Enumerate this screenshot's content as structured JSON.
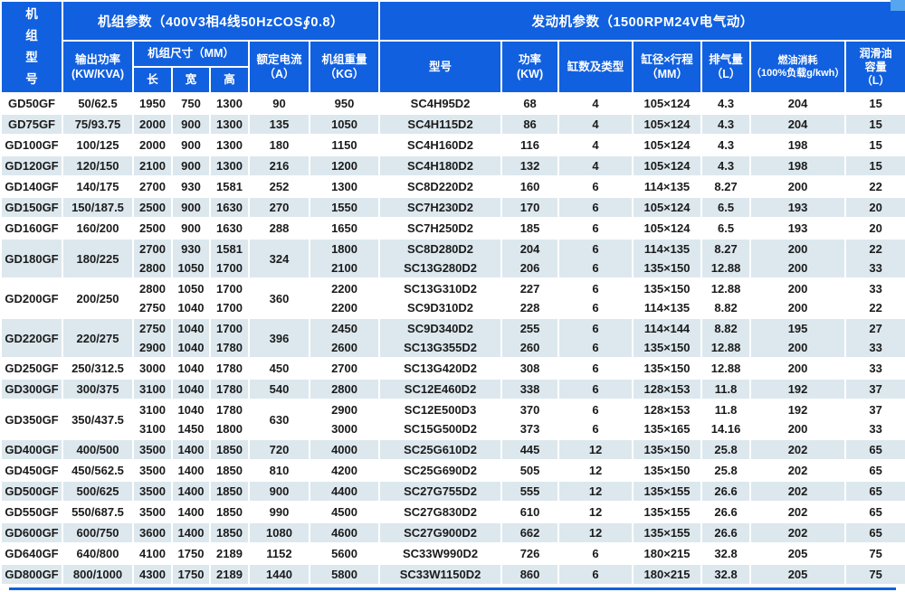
{
  "table": {
    "unit_model_header": "机\n组\n型\n号",
    "unit_banner": "机组参数（400V3相4线50HzCOS∮0.8）",
    "engine_banner": "发动机参数（1500RPM24V电气动）",
    "columns": {
      "output_power": "输出功率\n(KW/KVA)",
      "unit_size": "机组尺寸（MM）",
      "length": "长",
      "width": "宽",
      "height": "高",
      "rated_current": "额定电流\n（A）",
      "unit_weight": "机组重量\n（KG）",
      "engine_model": "型号",
      "engine_power": "功率\n(KW)",
      "cylinders": "缸数及类型",
      "bore_stroke": "缸径×行程\n（MM）",
      "displacement": "排气量\n（L）",
      "fuel_consumption": "燃油消耗\n（100%负载g/kwh）",
      "oil_capacity": "润滑油\n容量\n（L）"
    },
    "engine_fields": [
      "model",
      "kw",
      "cylinders",
      "bore_stroke",
      "displacement",
      "fuel",
      "oil"
    ],
    "colors": {
      "header_blue": "#1160df",
      "stripe": "#dce8ee",
      "corner_light": "#56a5ef",
      "border_white": "#ffffff",
      "text": "#1b1b1b"
    },
    "rows": [
      {
        "model": "GD50GF",
        "power": "50/62.5",
        "dims": [
          [
            "1950",
            "750",
            "1300"
          ]
        ],
        "current": "90",
        "weights": [
          "950"
        ],
        "engines": [
          [
            "SC4H95D2",
            "68",
            "4",
            "105×124",
            "4.3",
            "204",
            "15"
          ]
        ]
      },
      {
        "model": "GD75GF",
        "power": "75/93.75",
        "dims": [
          [
            "2000",
            "900",
            "1300"
          ]
        ],
        "current": "135",
        "weights": [
          "1050"
        ],
        "engines": [
          [
            "SC4H115D2",
            "86",
            "4",
            "105×124",
            "4.3",
            "204",
            "15"
          ]
        ]
      },
      {
        "model": "GD100GF",
        "power": "100/125",
        "dims": [
          [
            "2000",
            "900",
            "1300"
          ]
        ],
        "current": "180",
        "weights": [
          "1150"
        ],
        "engines": [
          [
            "SC4H160D2",
            "116",
            "4",
            "105×124",
            "4.3",
            "198",
            "15"
          ]
        ]
      },
      {
        "model": "GD120GF",
        "power": "120/150",
        "dims": [
          [
            "2100",
            "900",
            "1300"
          ]
        ],
        "current": "216",
        "weights": [
          "1200"
        ],
        "engines": [
          [
            "SC4H180D2",
            "132",
            "4",
            "105×124",
            "4.3",
            "198",
            "15"
          ]
        ]
      },
      {
        "model": "GD140GF",
        "power": "140/175",
        "dims": [
          [
            "2700",
            "930",
            "1581"
          ]
        ],
        "current": "252",
        "weights": [
          "1300"
        ],
        "engines": [
          [
            "SC8D220D2",
            "160",
            "6",
            "114×135",
            "8.27",
            "200",
            "22"
          ]
        ]
      },
      {
        "model": "GD150GF",
        "power": "150/187.5",
        "dims": [
          [
            "2500",
            "900",
            "1630"
          ]
        ],
        "current": "270",
        "weights": [
          "1550"
        ],
        "engines": [
          [
            "SC7H230D2",
            "170",
            "6",
            "105×124",
            "6.5",
            "193",
            "20"
          ]
        ]
      },
      {
        "model": "GD160GF",
        "power": "160/200",
        "dims": [
          [
            "2500",
            "900",
            "1630"
          ]
        ],
        "current": "288",
        "weights": [
          "1650"
        ],
        "engines": [
          [
            "SC7H250D2",
            "185",
            "6",
            "105×124",
            "6.5",
            "193",
            "20"
          ]
        ]
      },
      {
        "model": "GD180GF",
        "power": "180/225",
        "dims": [
          [
            "2700",
            "930",
            "1581"
          ],
          [
            "2800",
            "1050",
            "1700"
          ]
        ],
        "current": "324",
        "weights": [
          "1800",
          "2100"
        ],
        "engines": [
          [
            "SC8D280D2",
            "204",
            "6",
            "114×135",
            "8.27",
            "200",
            "22"
          ],
          [
            "SC13G280D2",
            "206",
            "6",
            "135×150",
            "12.88",
            "200",
            "33"
          ]
        ]
      },
      {
        "model": "GD200GF",
        "power": "200/250",
        "dims": [
          [
            "2800",
            "1050",
            "1700"
          ],
          [
            "2750",
            "1040",
            "1700"
          ]
        ],
        "current": "360",
        "weights": [
          "2200",
          "2200"
        ],
        "engines": [
          [
            "SC13G310D2",
            "227",
            "6",
            "135×150",
            "12.88",
            "200",
            "33"
          ],
          [
            "SC9D310D2",
            "228",
            "6",
            "114×135",
            "8.82",
            "200",
            "22"
          ]
        ]
      },
      {
        "model": "GD220GF",
        "power": "220/275",
        "dims": [
          [
            "2750",
            "1040",
            "1700"
          ],
          [
            "2900",
            "1040",
            "1780"
          ]
        ],
        "current": "396",
        "weights": [
          "2450",
          "2600"
        ],
        "engines": [
          [
            "SC9D340D2",
            "255",
            "6",
            "114×144",
            "8.82",
            "195",
            "27"
          ],
          [
            "SC13G355D2",
            "260",
            "6",
            "135×150",
            "12.88",
            "200",
            "33"
          ]
        ]
      },
      {
        "model": "GD250GF",
        "power": "250/312.5",
        "dims": [
          [
            "3000",
            "1040",
            "1780"
          ]
        ],
        "current": "450",
        "weights": [
          "2700"
        ],
        "engines": [
          [
            "SC13G420D2",
            "308",
            "6",
            "135×150",
            "12.88",
            "200",
            "33"
          ]
        ]
      },
      {
        "model": "GD300GF",
        "power": "300/375",
        "dims": [
          [
            "3100",
            "1040",
            "1780"
          ]
        ],
        "current": "540",
        "weights": [
          "2800"
        ],
        "engines": [
          [
            "SC12E460D2",
            "338",
            "6",
            "128×153",
            "11.8",
            "192",
            "37"
          ]
        ]
      },
      {
        "model": "GD350GF",
        "power": "350/437.5",
        "dims": [
          [
            "3100",
            "1040",
            "1780"
          ],
          [
            "3100",
            "1450",
            "1800"
          ]
        ],
        "current": "630",
        "weights": [
          "2900",
          "3000"
        ],
        "engines": [
          [
            "SC12E500D3",
            "370",
            "6",
            "128×153",
            "11.8",
            "192",
            "37"
          ],
          [
            "SC15G500D2",
            "373",
            "6",
            "135×165",
            "14.16",
            "200",
            "33"
          ]
        ]
      },
      {
        "model": "GD400GF",
        "power": "400/500",
        "dims": [
          [
            "3500",
            "1400",
            "1850"
          ]
        ],
        "current": "720",
        "weights": [
          "4000"
        ],
        "engines": [
          [
            "SC25G610D2",
            "445",
            "12",
            "135×150",
            "25.8",
            "202",
            "65"
          ]
        ]
      },
      {
        "model": "GD450GF",
        "power": "450/562.5",
        "dims": [
          [
            "3500",
            "1400",
            "1850"
          ]
        ],
        "current": "810",
        "weights": [
          "4200"
        ],
        "engines": [
          [
            "SC25G690D2",
            "505",
            "12",
            "135×150",
            "25.8",
            "202",
            "65"
          ]
        ]
      },
      {
        "model": "GD500GF",
        "power": "500/625",
        "dims": [
          [
            "3500",
            "1400",
            "1850"
          ]
        ],
        "current": "900",
        "weights": [
          "4400"
        ],
        "engines": [
          [
            "SC27G755D2",
            "555",
            "12",
            "135×155",
            "26.6",
            "202",
            "65"
          ]
        ]
      },
      {
        "model": "GD550GF",
        "power": "550/687.5",
        "dims": [
          [
            "3500",
            "1400",
            "1850"
          ]
        ],
        "current": "990",
        "weights": [
          "4500"
        ],
        "engines": [
          [
            "SC27G830D2",
            "610",
            "12",
            "135×155",
            "26.6",
            "202",
            "65"
          ]
        ]
      },
      {
        "model": "GD600GF",
        "power": "600/750",
        "dims": [
          [
            "3600",
            "1400",
            "1850"
          ]
        ],
        "current": "1080",
        "weights": [
          "4600"
        ],
        "engines": [
          [
            "SC27G900D2",
            "662",
            "12",
            "135×155",
            "26.6",
            "202",
            "65"
          ]
        ]
      },
      {
        "model": "GD640GF",
        "power": "640/800",
        "dims": [
          [
            "4100",
            "1750",
            "2189"
          ]
        ],
        "current": "1152",
        "weights": [
          "5600"
        ],
        "engines": [
          [
            "SC33W990D2",
            "726",
            "6",
            "180×215",
            "32.8",
            "205",
            "75"
          ]
        ]
      },
      {
        "model": "GD800GF",
        "power": "800/1000",
        "dims": [
          [
            "4300",
            "1750",
            "2189"
          ]
        ],
        "current": "1440",
        "weights": [
          "5800"
        ],
        "engines": [
          [
            "SC33W1150D2",
            "860",
            "6",
            "180×215",
            "32.8",
            "205",
            "75"
          ]
        ]
      }
    ]
  }
}
